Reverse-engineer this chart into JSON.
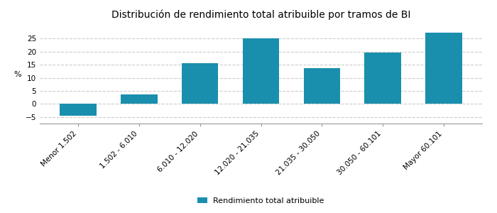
{
  "title": "Distribución de rendimiento total atribuible por tramos de BI",
  "categories": [
    "Menor 1.502",
    "1.502 - 6.010",
    "6.010 - 12.020",
    "12.020 - 21.035",
    "21.035 - 30.050",
    "30.050 - 60.101",
    "Mayor 60.101"
  ],
  "values": [
    -4.5,
    3.7,
    15.7,
    25.0,
    13.8,
    19.7,
    27.3
  ],
  "bar_color": "#1a8fad",
  "ylabel": "%",
  "ylim": [
    -7.5,
    30
  ],
  "yticks": [
    -5,
    0,
    5,
    10,
    15,
    20,
    25
  ],
  "legend_label": "Rendimiento total atribuible",
  "background_color": "#ffffff",
  "grid_color": "#cccccc",
  "title_fontsize": 10,
  "axis_fontsize": 8,
  "tick_fontsize": 7.5,
  "legend_fontsize": 8
}
